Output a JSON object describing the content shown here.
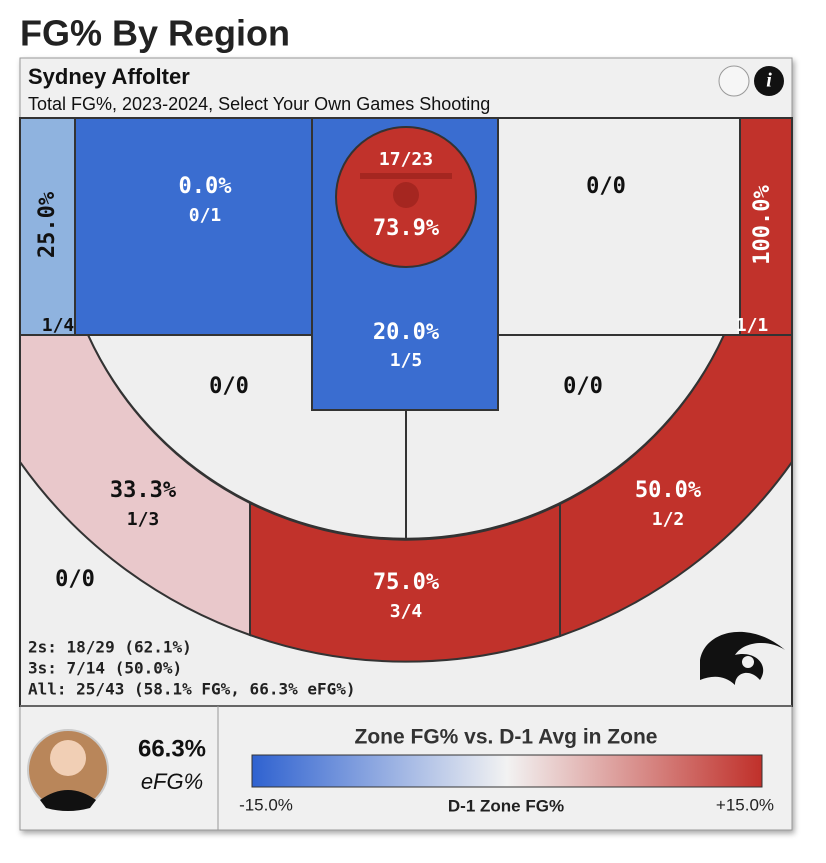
{
  "page_title": "FG% By Region",
  "header": {
    "player": "Sydney Affolter",
    "subtitle": "Total FG%, 2023-2024, Select Your Own Games Shooting"
  },
  "zones": {
    "left_corner": {
      "pct": "25.0%",
      "shots": "1/4"
    },
    "right_corner": {
      "pct": "100.0%",
      "shots": "1/1"
    },
    "left_upper_mid": {
      "pct": "0.0%",
      "shots": "0/1"
    },
    "restricted": {
      "shots": "17/23",
      "pct": "73.9%"
    },
    "paint": {
      "pct": "20.0%",
      "shots": "1/5"
    },
    "right_upper_mid": {
      "shots": "0/0"
    },
    "left_lower_mid": {
      "shots": "0/0"
    },
    "right_lower_mid": {
      "shots": "0/0"
    },
    "left_wing_three": {
      "pct": "33.3%",
      "shots": "1/3"
    },
    "top_three": {
      "pct": "75.0%",
      "shots": "3/4"
    },
    "right_wing_three": {
      "pct": "50.0%",
      "shots": "1/2"
    },
    "deep": {
      "shots": "0/0"
    }
  },
  "summary": [
    "2s: 18/29 (62.1%)",
    "3s: 7/14 (50.0%)",
    "All: 25/43 (58.1% FG%, 66.3% eFG%)"
  ],
  "efg": {
    "value": "66.3%",
    "label": "eFG%"
  },
  "legend": {
    "title": "Zone FG% vs. D-1 Avg in Zone",
    "min": "-15.0%",
    "axis": "D-1 Zone FG%",
    "max": "+15.0%"
  }
}
